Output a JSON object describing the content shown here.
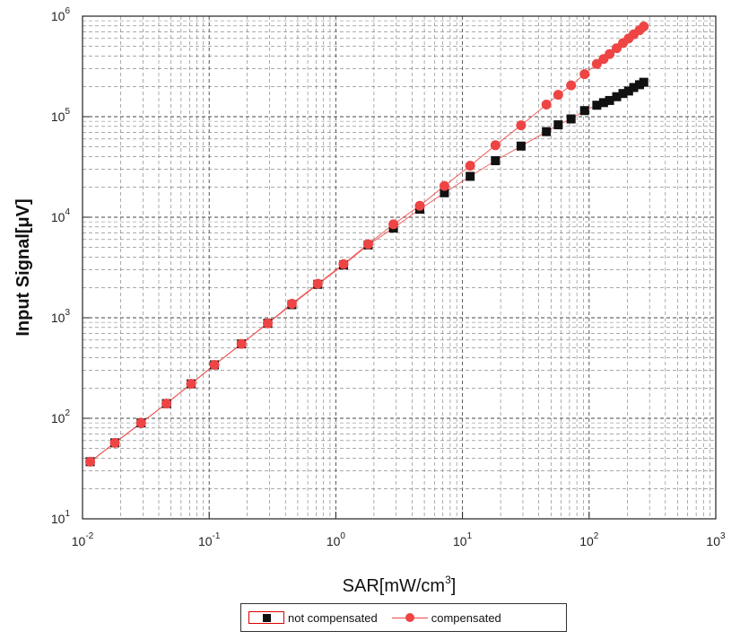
{
  "chart_data": {
    "type": "scatter",
    "title": "",
    "xlabel": "SAR[mW/cm3]",
    "ylabel": "Input Signal[μV]",
    "xscale": "log",
    "yscale": "log",
    "xlim": [
      0.01,
      1000
    ],
    "ylim": [
      10,
      1000000
    ],
    "grid": true,
    "legend_position": "bottom",
    "x_ticks": [
      {
        "value": 0.01,
        "base": "10",
        "exp": "-2"
      },
      {
        "value": 0.1,
        "base": "10",
        "exp": "-1"
      },
      {
        "value": 1,
        "base": "10",
        "exp": "0"
      },
      {
        "value": 10,
        "base": "10",
        "exp": "1"
      },
      {
        "value": 100,
        "base": "10",
        "exp": "2"
      },
      {
        "value": 1000,
        "base": "10",
        "exp": "3"
      }
    ],
    "y_ticks": [
      {
        "value": 10,
        "base": "10",
        "exp": "1"
      },
      {
        "value": 100,
        "base": "10",
        "exp": "2"
      },
      {
        "value": 1000,
        "base": "10",
        "exp": "3"
      },
      {
        "value": 10000,
        "base": "10",
        "exp": "4"
      },
      {
        "value": 100000,
        "base": "10",
        "exp": "5"
      },
      {
        "value": 1000000,
        "base": "10",
        "exp": "6"
      }
    ],
    "series": [
      {
        "name": "not compensated",
        "marker": "square",
        "color": "#111111",
        "line_color": "#ee4444",
        "points": [
          [
            0.0115,
            37
          ],
          [
            0.018,
            57
          ],
          [
            0.029,
            90
          ],
          [
            0.046,
            140
          ],
          [
            0.072,
            220
          ],
          [
            0.11,
            340
          ],
          [
            0.18,
            550
          ],
          [
            0.29,
            880
          ],
          [
            0.45,
            1350
          ],
          [
            0.72,
            2150
          ],
          [
            1.15,
            3350
          ],
          [
            1.8,
            5300
          ],
          [
            2.85,
            7800
          ],
          [
            4.6,
            12000
          ],
          [
            7.2,
            17500
          ],
          [
            11.5,
            25500
          ],
          [
            18.2,
            36500
          ],
          [
            29,
            51000
          ],
          [
            46,
            71000
          ],
          [
            57,
            83000
          ],
          [
            72,
            95000
          ],
          [
            92,
            115000
          ],
          [
            115,
            130000
          ],
          [
            130,
            138000
          ],
          [
            145,
            145000
          ],
          [
            165,
            158000
          ],
          [
            185,
            170000
          ],
          [
            205,
            180000
          ],
          [
            225,
            195000
          ],
          [
            250,
            208000
          ],
          [
            270,
            220000
          ]
        ]
      },
      {
        "name": "compensated",
        "marker": "circle",
        "color": "#ee4444",
        "points": [
          [
            0.0115,
            37
          ],
          [
            0.018,
            57
          ],
          [
            0.029,
            90
          ],
          [
            0.046,
            140
          ],
          [
            0.072,
            220
          ],
          [
            0.11,
            340
          ],
          [
            0.18,
            550
          ],
          [
            0.29,
            880
          ],
          [
            0.45,
            1380
          ],
          [
            0.72,
            2180
          ],
          [
            1.15,
            3420
          ],
          [
            1.8,
            5400
          ],
          [
            2.85,
            8500
          ],
          [
            4.6,
            13000
          ],
          [
            7.2,
            20500
          ],
          [
            11.5,
            32500
          ],
          [
            18.2,
            52000
          ],
          [
            29,
            82000
          ],
          [
            46,
            132000
          ],
          [
            57,
            165000
          ],
          [
            72,
            205000
          ],
          [
            92,
            265000
          ],
          [
            115,
            335000
          ],
          [
            130,
            375000
          ],
          [
            145,
            420000
          ],
          [
            165,
            480000
          ],
          [
            185,
            540000
          ],
          [
            205,
            600000
          ],
          [
            225,
            660000
          ],
          [
            250,
            725000
          ],
          [
            270,
            790000
          ]
        ]
      }
    ]
  },
  "axes": {
    "xlabel_main": "SAR[mW/cm",
    "xlabel_sup": "3",
    "xlabel_end": "]",
    "ylabel": "Input Signal[μV]"
  },
  "legend": {
    "not_compensated": "not compensated",
    "compensated": "compensated"
  }
}
